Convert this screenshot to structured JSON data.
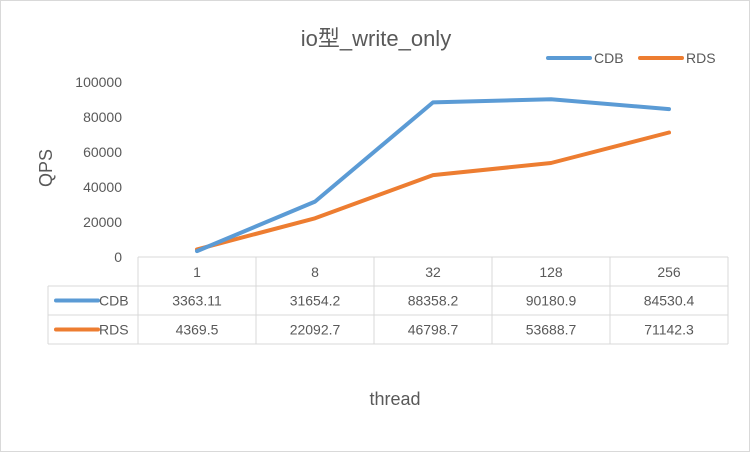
{
  "chart_data": {
    "type": "line",
    "title": "io型_write_only",
    "xlabel": "thread",
    "ylabel": "QPS",
    "categories": [
      "1",
      "8",
      "32",
      "128",
      "256"
    ],
    "ylim": [
      0,
      100000
    ],
    "yticks": [
      "0",
      "20000",
      "40000",
      "60000",
      "80000",
      "100000"
    ],
    "grid": false,
    "legend_position": "top-right",
    "data_table": true,
    "series": [
      {
        "name": "CDB",
        "color": "#5b9bd5",
        "values": [
          3363.11,
          31654.2,
          88358.2,
          90180.9,
          84530.4
        ],
        "labels": [
          "3363.11",
          "31654.2",
          "88358.2",
          "90180.9",
          "84530.4"
        ]
      },
      {
        "name": "RDS",
        "color": "#ed7d31",
        "values": [
          4369.5,
          22092.7,
          46798.7,
          53688.7,
          71142.3
        ],
        "labels": [
          "4369.5",
          "22092.7",
          "46798.7",
          "53688.7",
          "71142.3"
        ]
      }
    ]
  }
}
